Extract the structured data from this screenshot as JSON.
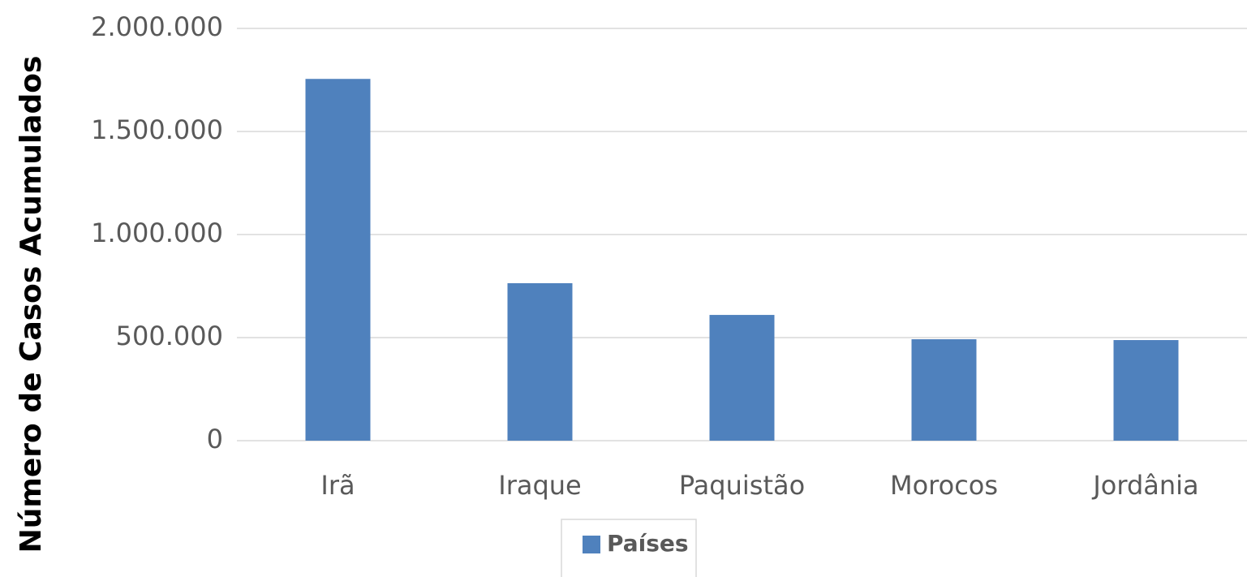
{
  "chart_data": {
    "type": "bar",
    "y_axis_label": "Número de Casos Acumulados",
    "categories": [
      "Irã",
      "Iraque",
      "Paquistão",
      "Morocos",
      "Jordânia"
    ],
    "series": [
      {
        "name": "Países",
        "color": "#4f81bd",
        "values": [
          1755000,
          764000,
          610000,
          492000,
          488000
        ]
      }
    ],
    "ylim": [
      0,
      2000000
    ],
    "yticks": [
      0,
      {
        "value": 500000,
        "label": "500.000"
      },
      {
        "value": 1000000,
        "label": "1.000.000"
      },
      {
        "value": 1500000,
        "label": "1.500.000"
      },
      {
        "value": 2000000,
        "label": "2.000.000"
      }
    ],
    "grid": true,
    "legend": "bottom"
  }
}
